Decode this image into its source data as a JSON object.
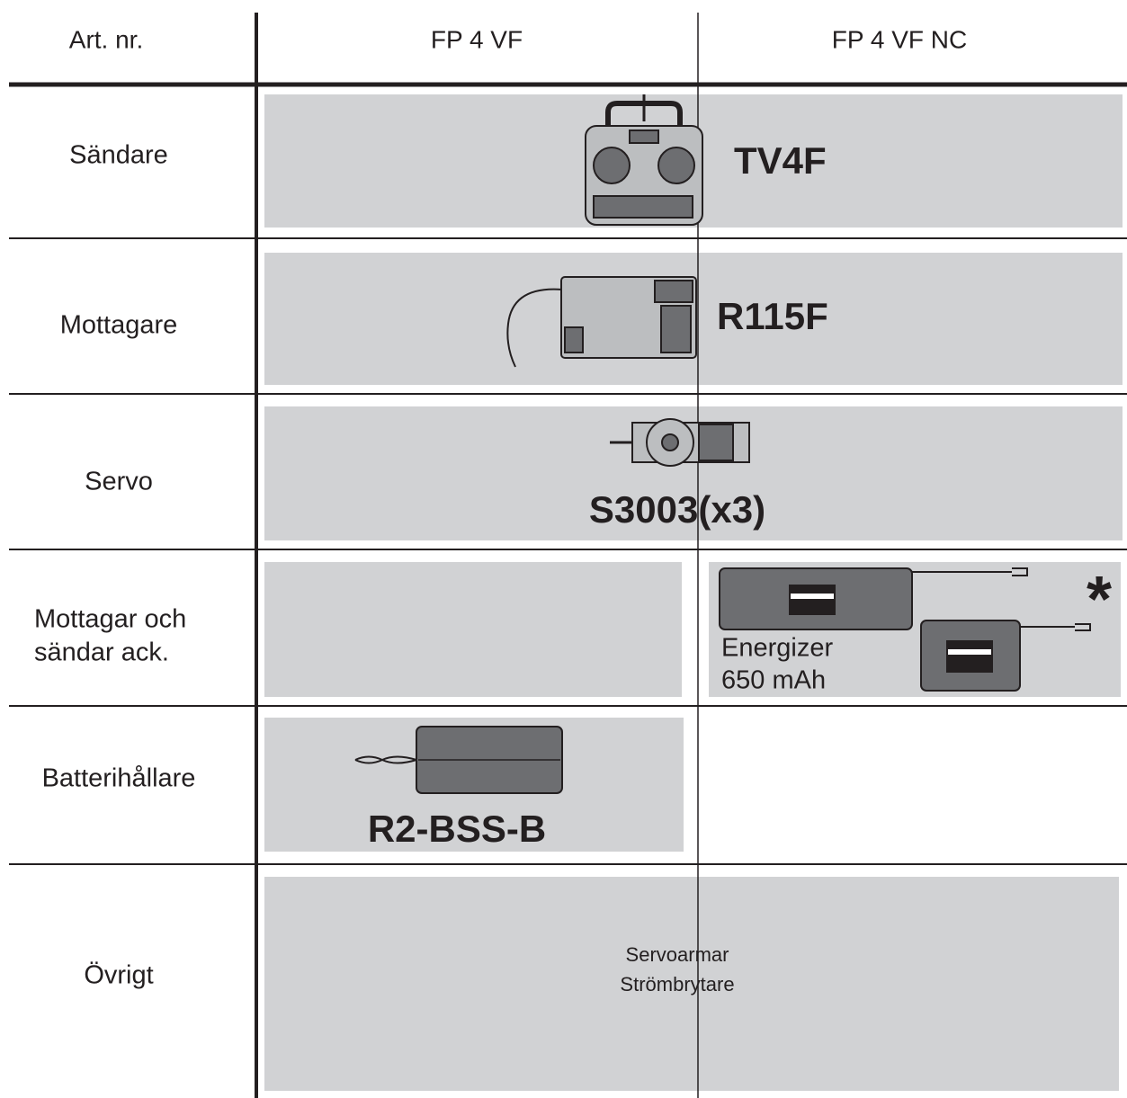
{
  "header": {
    "columns": [
      "Art. nr.",
      "FP 4 VF",
      "FP 4 VF NC"
    ]
  },
  "rows": [
    {
      "label": [
        "Sändare"
      ],
      "item": "TV4F"
    },
    {
      "label": [
        "Mottagare"
      ],
      "item": "R115F"
    },
    {
      "label": [
        "Servo"
      ],
      "item": "S3003(x3)"
    },
    {
      "label": [
        "Mottagar och",
        "sändar ack."
      ],
      "item_nc": {
        "lines": [
          "Energizer",
          "650 mAh"
        ],
        "mark": "*"
      }
    },
    {
      "label": [
        "Batterihållare"
      ],
      "item": "R2-BSS-B"
    },
    {
      "label": [
        "Övrigt"
      ],
      "lines": [
        "Servoarmar",
        "Strömbrytare"
      ]
    }
  ]
}
